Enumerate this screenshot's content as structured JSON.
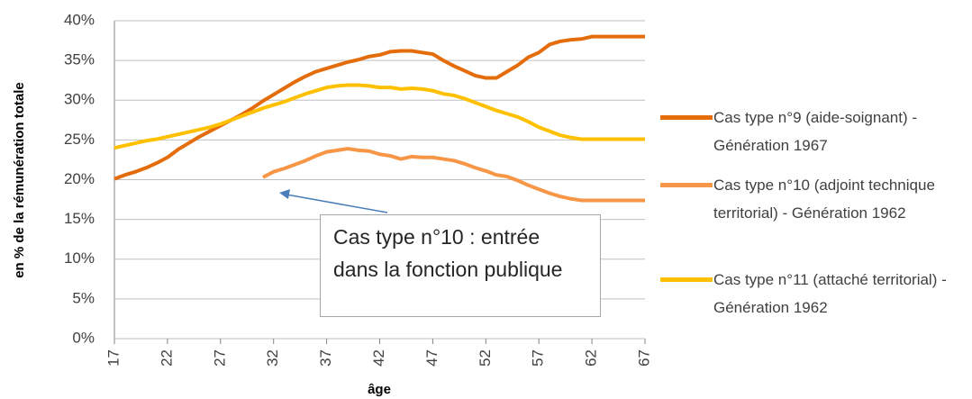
{
  "chart_data": {
    "type": "line",
    "x_label": "âge",
    "y_label": "en % de la rémunération totale",
    "annotation": "Cas type n°10 : entrée dans la fonction publique",
    "x": [
      17,
      18,
      19,
      20,
      21,
      22,
      23,
      24,
      25,
      26,
      27,
      28,
      29,
      30,
      31,
      32,
      33,
      34,
      35,
      36,
      37,
      38,
      39,
      40,
      41,
      42,
      43,
      44,
      45,
      46,
      47,
      48,
      49,
      50,
      51,
      52,
      53,
      54,
      55,
      56,
      57,
      58,
      59,
      60,
      61,
      62,
      63,
      64,
      65,
      66,
      67
    ],
    "xlim": [
      17,
      67
    ],
    "xticks": [
      17,
      22,
      27,
      32,
      37,
      42,
      47,
      52,
      57,
      62,
      67
    ],
    "ylim": [
      0,
      40
    ],
    "yticks": [
      {
        "value": 0,
        "label": "0%"
      },
      {
        "value": 5,
        "label": "5%"
      },
      {
        "value": 10,
        "label": "10%"
      },
      {
        "value": 15,
        "label": "15%"
      },
      {
        "value": 20,
        "label": "20%"
      },
      {
        "value": 25,
        "label": "25%"
      },
      {
        "value": 30,
        "label": "30%"
      },
      {
        "value": 35,
        "label": "35%"
      },
      {
        "value": 40,
        "label": "40%"
      }
    ],
    "grid": true,
    "series": [
      {
        "name": "Cas type n°9 (aide-soignant) - Génération 1967",
        "color": "#e46c0a",
        "values": [
          20.1,
          20.6,
          21.0,
          21.5,
          22.1,
          22.8,
          23.8,
          24.6,
          25.4,
          26.1,
          26.8,
          27.5,
          28.2,
          29.0,
          29.9,
          30.7,
          31.5,
          32.3,
          33.0,
          33.6,
          34.0,
          34.4,
          34.8,
          35.1,
          35.5,
          35.7,
          36.1,
          36.2,
          36.2,
          36.0,
          35.8,
          35.0,
          34.3,
          33.7,
          33.1,
          32.8,
          32.8,
          33.6,
          34.4,
          35.4,
          36.0,
          37.0,
          37.4,
          37.6,
          37.7,
          38.0,
          38.0,
          38.0,
          38.0,
          38.0,
          38.0
        ]
      },
      {
        "name": "Cas type n°10 (adjoint technique territorial) - Génération 1962",
        "color": "#f79646",
        "values": [
          null,
          null,
          null,
          null,
          null,
          null,
          null,
          null,
          null,
          null,
          null,
          null,
          null,
          null,
          20.3,
          21.0,
          21.4,
          21.9,
          22.4,
          23.0,
          23.5,
          23.7,
          23.9,
          23.7,
          23.6,
          23.2,
          23.0,
          22.6,
          22.9,
          22.8,
          22.8,
          22.6,
          22.4,
          22.0,
          21.5,
          21.1,
          20.6,
          20.4,
          19.9,
          19.3,
          18.8,
          18.3,
          17.9,
          17.6,
          17.4,
          17.4,
          17.4,
          17.4,
          17.4,
          17.4,
          17.4
        ]
      },
      {
        "name": "Cas type n°11 (attaché territorial) - Génération 1962",
        "color": "#ffc000",
        "values": [
          24.0,
          24.3,
          24.6,
          24.9,
          25.1,
          25.4,
          25.7,
          26.0,
          26.3,
          26.6,
          27.0,
          27.5,
          28.0,
          28.5,
          29.0,
          29.4,
          29.8,
          30.3,
          30.8,
          31.2,
          31.6,
          31.8,
          31.9,
          31.9,
          31.8,
          31.6,
          31.6,
          31.4,
          31.5,
          31.4,
          31.2,
          30.8,
          30.6,
          30.2,
          29.7,
          29.2,
          28.7,
          28.3,
          27.9,
          27.3,
          26.6,
          26.1,
          25.6,
          25.3,
          25.1,
          25.1,
          25.1,
          25.1,
          25.1,
          25.1,
          25.1
        ]
      }
    ]
  }
}
